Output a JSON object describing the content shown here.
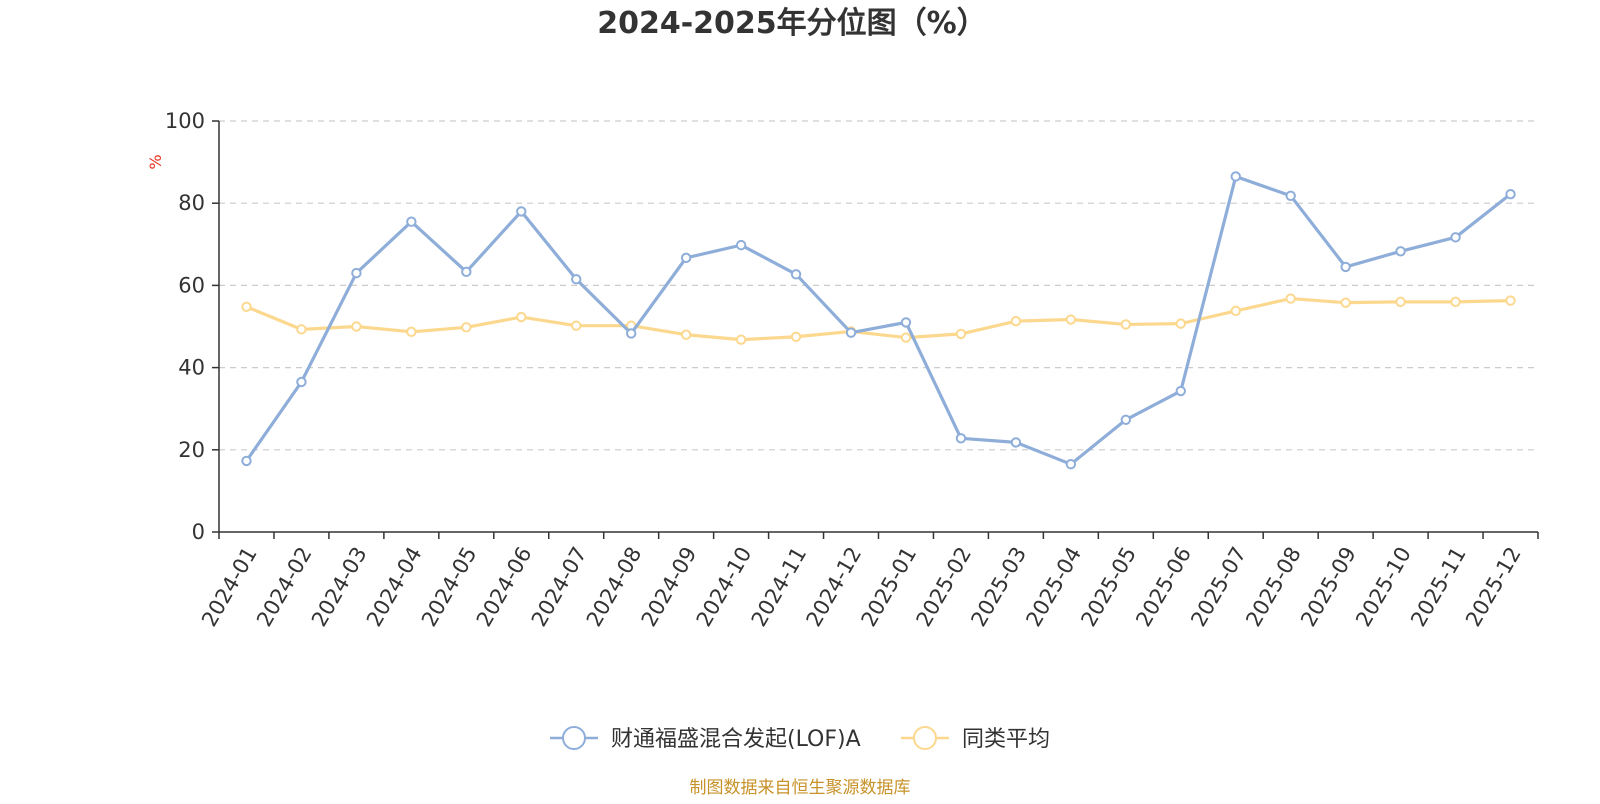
{
  "chart_data": {
    "type": "line",
    "title": "2024-2025年分位图（%）",
    "ylabel": "%",
    "ylim": [
      0,
      100
    ],
    "yticks": [
      0,
      20,
      40,
      60,
      80,
      100
    ],
    "grid": true,
    "legend_position": "bottom-center",
    "categories": [
      "2024-01",
      "2024-02",
      "2024-03",
      "2024-04",
      "2024-05",
      "2024-06",
      "2024-07",
      "2024-08",
      "2024-09",
      "2024-10",
      "2024-11",
      "2024-12",
      "2025-01",
      "2025-02",
      "2025-03",
      "2025-04",
      "2025-05",
      "2025-06",
      "2025-07",
      "2025-08",
      "2025-09",
      "2025-10",
      "2025-11",
      "2025-12"
    ],
    "series": [
      {
        "name": "财通福盛混合发起(LOF)A",
        "color": "#8eaed9",
        "values": [
          17.3,
          36.5,
          63.0,
          75.5,
          63.3,
          78.0,
          61.5,
          48.3,
          66.7,
          69.8,
          62.7,
          48.5,
          51.0,
          22.8,
          21.8,
          16.5,
          27.3,
          34.3,
          86.5,
          81.8,
          64.5,
          68.3,
          71.7,
          82.2
        ]
      },
      {
        "name": "同类平均",
        "color": "#fcd88f",
        "values": [
          54.8,
          49.3,
          50.0,
          48.7,
          49.8,
          52.3,
          50.2,
          50.2,
          48.0,
          46.8,
          47.5,
          48.8,
          47.3,
          48.2,
          51.3,
          51.7,
          50.5,
          50.7,
          53.8,
          56.8,
          55.8,
          56.0,
          56.0,
          56.3
        ]
      }
    ],
    "source": "制图数据来自恒生聚源数据库",
    "source_color": "#c8922a"
  }
}
